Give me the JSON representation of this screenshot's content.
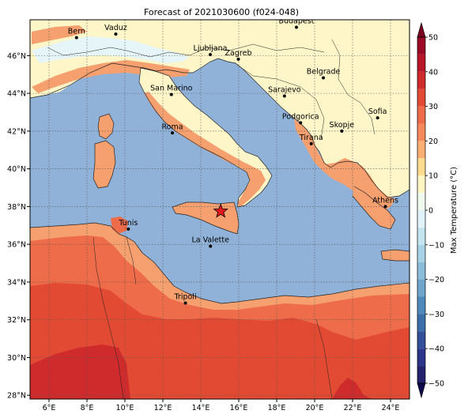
{
  "title": "Forecast of 2021030600 (f024-048)",
  "lon_ticks": [
    {
      "lon": 6,
      "label": "6°E"
    },
    {
      "lon": 8,
      "label": "8°E"
    },
    {
      "lon": 10,
      "label": "10°E"
    },
    {
      "lon": 12,
      "label": "12°E"
    },
    {
      "lon": 14,
      "label": "14°E"
    },
    {
      "lon": 16,
      "label": "16°E"
    },
    {
      "lon": 18,
      "label": "18°E"
    },
    {
      "lon": 20,
      "label": "20°E"
    },
    {
      "lon": 22,
      "label": "22°E"
    },
    {
      "lon": 24,
      "label": "24°E"
    }
  ],
  "lat_ticks": [
    {
      "lat": 28,
      "label": "28°N"
    },
    {
      "lat": 30,
      "label": "30°N"
    },
    {
      "lat": 32,
      "label": "32°N"
    },
    {
      "lat": 34,
      "label": "34°N"
    },
    {
      "lat": 36,
      "label": "36°N"
    },
    {
      "lat": 38,
      "label": "38°N"
    },
    {
      "lat": 40,
      "label": "40°N"
    },
    {
      "lat": 42,
      "label": "42°N"
    },
    {
      "lat": 44,
      "label": "44°N"
    },
    {
      "lat": 46,
      "label": "46°N"
    }
  ],
  "extent": {
    "lon_min": 5.0,
    "lon_max": 25.0,
    "lat_min": 27.8,
    "lat_max": 47.9
  },
  "cities": [
    {
      "name": "Bern",
      "lon": 7.45,
      "lat": 46.95
    },
    {
      "name": "Vaduz",
      "lon": 9.52,
      "lat": 47.14
    },
    {
      "name": "Ljubljana",
      "lon": 14.5,
      "lat": 46.05
    },
    {
      "name": "Zagreb",
      "lon": 15.98,
      "lat": 45.81
    },
    {
      "name": "Budapest",
      "lon": 19.04,
      "lat": 47.5
    },
    {
      "name": "Belgrade",
      "lon": 20.46,
      "lat": 44.82
    },
    {
      "name": "San Marino",
      "lon": 12.45,
      "lat": 43.94
    },
    {
      "name": "Sarajevo",
      "lon": 18.41,
      "lat": 43.86
    },
    {
      "name": "Sofia",
      "lon": 23.32,
      "lat": 42.7
    },
    {
      "name": "Podgorica",
      "lon": 19.26,
      "lat": 42.44
    },
    {
      "name": "Skopje",
      "lon": 21.43,
      "lat": 42.0
    },
    {
      "name": "Roma",
      "lon": 12.5,
      "lat": 41.9
    },
    {
      "name": "Tirana",
      "lon": 19.82,
      "lat": 41.33
    },
    {
      "name": "Athens",
      "lon": 23.73,
      "lat": 38.0
    },
    {
      "name": "Tunis",
      "lon": 10.18,
      "lat": 36.81
    },
    {
      "name": "La Valette",
      "lon": 14.51,
      "lat": 35.9
    },
    {
      "name": "Tripoli",
      "lon": 13.19,
      "lat": 32.89
    }
  ],
  "marker": {
    "type": "star",
    "lon": 15.05,
    "lat": 37.75,
    "color": "#e41a1c"
  },
  "colorbar": {
    "label": "Max Temperature (°C)",
    "ticks": [
      "50",
      "40",
      "30",
      "20",
      "10",
      "0",
      "−10",
      "−20",
      "−30",
      "−40",
      "−50"
    ],
    "levels": [
      {
        "from": 45,
        "to": 50,
        "color": "#9b0a25"
      },
      {
        "from": 40,
        "to": 45,
        "color": "#b8152b"
      },
      {
        "from": 35,
        "to": 40,
        "color": "#cf2a2c"
      },
      {
        "from": 30,
        "to": 35,
        "color": "#e34a33"
      },
      {
        "from": 25,
        "to": 30,
        "color": "#ef6c4a"
      },
      {
        "from": 20,
        "to": 25,
        "color": "#f5895a"
      },
      {
        "from": 15,
        "to": 20,
        "color": "#fbaf72"
      },
      {
        "from": 10,
        "to": 15,
        "color": "#fddc90"
      },
      {
        "from": 5,
        "to": 10,
        "color": "#fff6c4"
      },
      {
        "from": 0,
        "to": 5,
        "color": "#f1faee"
      },
      {
        "from": -5,
        "to": 0,
        "color": "#e0f3f8"
      },
      {
        "from": -10,
        "to": -5,
        "color": "#c4e4ef"
      },
      {
        "from": -15,
        "to": -10,
        "color": "#a8d2e6"
      },
      {
        "from": -20,
        "to": -15,
        "color": "#8bbcd9"
      },
      {
        "from": -25,
        "to": -20,
        "color": "#6da5cc"
      },
      {
        "from": -30,
        "to": -25,
        "color": "#4e8abc"
      },
      {
        "from": -35,
        "to": -30,
        "color": "#3c6eab"
      },
      {
        "from": -40,
        "to": -35,
        "color": "#334f9a"
      },
      {
        "from": -45,
        "to": -40,
        "color": "#2b3589"
      },
      {
        "from": -50,
        "to": -45,
        "color": "#24216f"
      }
    ],
    "over_color": "#7a0020",
    "under_color": "#0e0a4d"
  },
  "colors": {
    "sea": "#91b2d8",
    "land_hot": "#e34a33",
    "land_warm": "#ef6c4a",
    "land_mild": "#f5a06e",
    "land_cool": "#fef6c8",
    "land_cold": "#e6f5f7"
  }
}
